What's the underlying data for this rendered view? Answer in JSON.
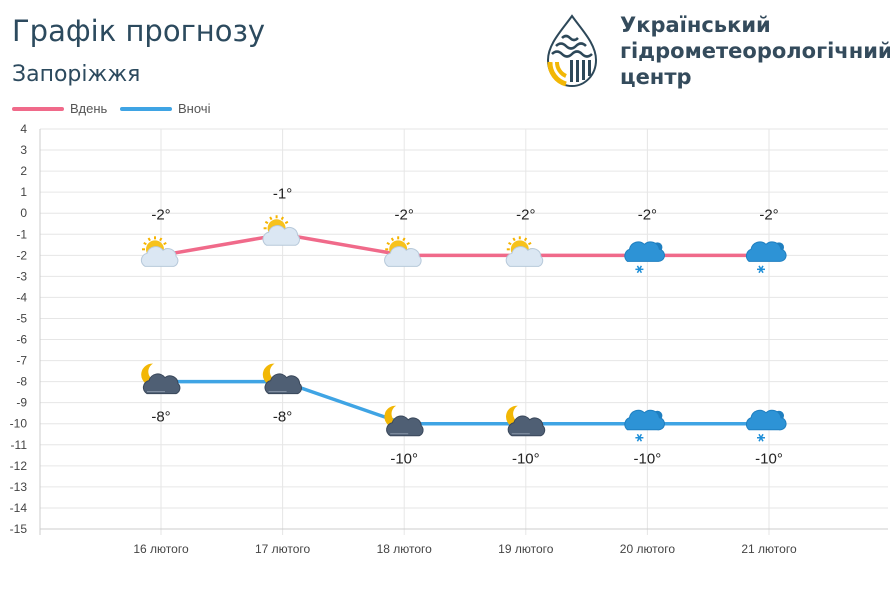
{
  "header": {
    "title": "Графік прогнозу",
    "city": "Запоріжжя",
    "org_lines": [
      "Український",
      "гідрометеорологічний",
      "центр"
    ]
  },
  "chart_data": {
    "type": "line",
    "categories": [
      "16 лютого",
      "17 лютого",
      "18 лютого",
      "19 лютого",
      "20 лютого",
      "21 лютого"
    ],
    "series": [
      {
        "name": "Вдень",
        "color": "#f06a8a",
        "values": [
          -2,
          -1,
          -2,
          -2,
          -2,
          -2
        ],
        "labels": [
          "-2°",
          "-1°",
          "-2°",
          "-2°",
          "-2°",
          "-2°"
        ],
        "icons": [
          "sun-cloud-icon",
          "sun-cloud-icon",
          "sun-cloud-icon",
          "sun-cloud-icon",
          "snow-cloud-icon",
          "snow-cloud-icon"
        ]
      },
      {
        "name": "Вночі",
        "color": "#3fa4e4",
        "values": [
          -8,
          -8,
          -10,
          -10,
          -10,
          -10
        ],
        "labels": [
          "-8°",
          "-8°",
          "-10°",
          "-10°",
          "-10°",
          "-10°"
        ],
        "icons": [
          "moon-cloud-icon",
          "moon-cloud-icon",
          "moon-cloud-icon",
          "moon-cloud-icon",
          "snow-cloud-icon",
          "snow-cloud-icon"
        ]
      }
    ],
    "ylim": [
      -15,
      4
    ],
    "yticks": [
      4,
      3,
      2,
      1,
      0,
      -1,
      -2,
      -3,
      -4,
      -5,
      -6,
      -7,
      -8,
      -9,
      -10,
      -11,
      -12,
      -13,
      -14,
      -15
    ],
    "grid": true,
    "legend": "top-left",
    "colors": {
      "grid": "#e6e6e6",
      "axis": "#cccccc",
      "tick_text": "#444444"
    }
  }
}
